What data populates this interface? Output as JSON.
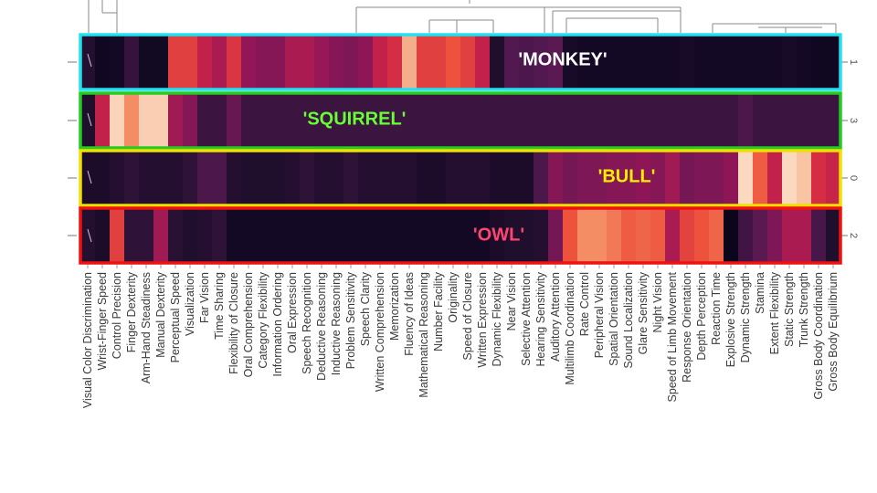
{
  "chart_data": {
    "type": "heatmap",
    "title": "",
    "xlabel": "",
    "ylabel": "",
    "legend": "none",
    "dendrogram": "top",
    "columns": [
      "Visual Color Discrimination",
      "Wrist-Finger Speed",
      "Control Precision",
      "Finger Dexterity",
      "Arm-Hand Steadiness",
      "Manual Dexterity",
      "Perceptual Speed",
      "Visualization",
      "Far Vision",
      "Time Sharing",
      "Flexibility of Closure",
      "Oral Comprehension",
      "Category Flexibility",
      "Information Ordering",
      "Oral Expression",
      "Speech Recognition",
      "Deductive Reasoning",
      "Inductive Reasoning",
      "Problem Sensitivity",
      "Speech Clarity",
      "Written Comprehension",
      "Memorization",
      "Fluency of Ideas",
      "Mathematical Reasoning",
      "Number Facility",
      "Originality",
      "Speed of Closure",
      "Written Expression",
      "Dynamic Flexibility",
      "Near Vision",
      "Selective Attention",
      "Hearing Sensitivity",
      "Auditory Attention",
      "Multilimb Coordination",
      "Rate Control",
      "Peripheral Vision",
      "Spatial Orientation",
      "Sound Localization",
      "Glare Sensitivity",
      "Night Vision",
      "Speed of Limb Movement",
      "Response Orientation",
      "Depth Perception",
      "Reaction Time",
      "Explosive Strength",
      "Dynamic Strength",
      "Stamina",
      "Extent Flexibility",
      "Static Strength",
      "Trunk Strength",
      "Gross Body Coordination",
      "Gross Body Equilibrium"
    ],
    "rows": [
      {
        "tick": "1",
        "cluster": "'MONKEY'",
        "border_color": "#22e0f0",
        "label_color": "#ffffff",
        "values": [
          0.14,
          0.04,
          0.06,
          0.2,
          0.05,
          0.05,
          0.65,
          0.65,
          0.55,
          0.5,
          0.62,
          0.45,
          0.42,
          0.42,
          0.5,
          0.5,
          0.46,
          0.42,
          0.4,
          0.44,
          0.55,
          0.6,
          0.88,
          0.65,
          0.65,
          0.7,
          0.65,
          0.55,
          0.12,
          0.3,
          0.28,
          0.3,
          0.32,
          0.08,
          0.06,
          0.06,
          0.06,
          0.06,
          0.06,
          0.06,
          0.06,
          0.08,
          0.06,
          0.06,
          0.06,
          0.06,
          0.06,
          0.06,
          0.08,
          0.06,
          0.04,
          0.04
        ]
      },
      {
        "tick": "3",
        "cluster": "'SQUIRREL'",
        "border_color": "#22cc22",
        "label_color": "#66ff33",
        "values": [
          0.12,
          0.55,
          0.95,
          0.82,
          0.94,
          0.94,
          0.48,
          0.42,
          0.22,
          0.22,
          0.35,
          0.22,
          0.22,
          0.22,
          0.22,
          0.22,
          0.22,
          0.22,
          0.22,
          0.22,
          0.22,
          0.22,
          0.22,
          0.22,
          0.22,
          0.22,
          0.22,
          0.22,
          0.22,
          0.22,
          0.22,
          0.22,
          0.22,
          0.22,
          0.22,
          0.22,
          0.22,
          0.22,
          0.22,
          0.22,
          0.22,
          0.22,
          0.22,
          0.22,
          0.22,
          0.28,
          0.22,
          0.22,
          0.22,
          0.22,
          0.22,
          0.22
        ]
      },
      {
        "tick": "0",
        "cluster": "'BULL'",
        "border_color": "#f0e000",
        "label_color": "#ffee00",
        "values": [
          0.1,
          0.1,
          0.14,
          0.18,
          0.14,
          0.14,
          0.14,
          0.18,
          0.28,
          0.28,
          0.14,
          0.12,
          0.12,
          0.12,
          0.14,
          0.18,
          0.14,
          0.14,
          0.18,
          0.14,
          0.14,
          0.14,
          0.14,
          0.1,
          0.1,
          0.14,
          0.14,
          0.14,
          0.1,
          0.1,
          0.1,
          0.28,
          0.42,
          0.38,
          0.4,
          0.4,
          0.42,
          0.42,
          0.44,
          0.42,
          0.48,
          0.38,
          0.4,
          0.4,
          0.44,
          0.96,
          0.72,
          0.55,
          0.96,
          0.92,
          0.6,
          0.56
        ]
      },
      {
        "tick": "2",
        "cluster": "'OWL'",
        "border_color": "#ee1111",
        "label_color": "#ff4470",
        "values": [
          0.14,
          0.1,
          0.65,
          0.18,
          0.18,
          0.48,
          0.16,
          0.12,
          0.14,
          0.18,
          0.06,
          0.06,
          0.06,
          0.06,
          0.06,
          0.06,
          0.06,
          0.06,
          0.06,
          0.06,
          0.06,
          0.06,
          0.06,
          0.06,
          0.06,
          0.06,
          0.06,
          0.06,
          0.1,
          0.12,
          0.12,
          0.14,
          0.38,
          0.7,
          0.82,
          0.82,
          0.78,
          0.72,
          0.74,
          0.72,
          0.5,
          0.66,
          0.7,
          0.74,
          0.02,
          0.24,
          0.32,
          0.4,
          0.5,
          0.5,
          0.26,
          0.12
        ]
      }
    ]
  }
}
